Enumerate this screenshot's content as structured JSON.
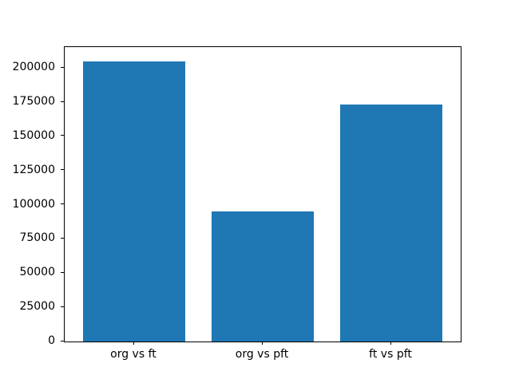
{
  "chart_data": {
    "type": "bar",
    "categories": [
      "org vs ft",
      "org vs pft",
      "ft vs pft"
    ],
    "values": [
      205000,
      95000,
      173000
    ],
    "title": "",
    "xlabel": "",
    "ylabel": "",
    "ylim": [
      0,
      215250
    ],
    "yticks": [
      0,
      25000,
      50000,
      75000,
      100000,
      125000,
      150000,
      175000,
      200000
    ],
    "bar_color": "#1f77b4",
    "axes_edge_color": "#000000",
    "background_color": "#ffffff",
    "bar_width_fraction": 0.8,
    "x_margin_fraction": 0.05,
    "grid": false,
    "legend": "none"
  }
}
